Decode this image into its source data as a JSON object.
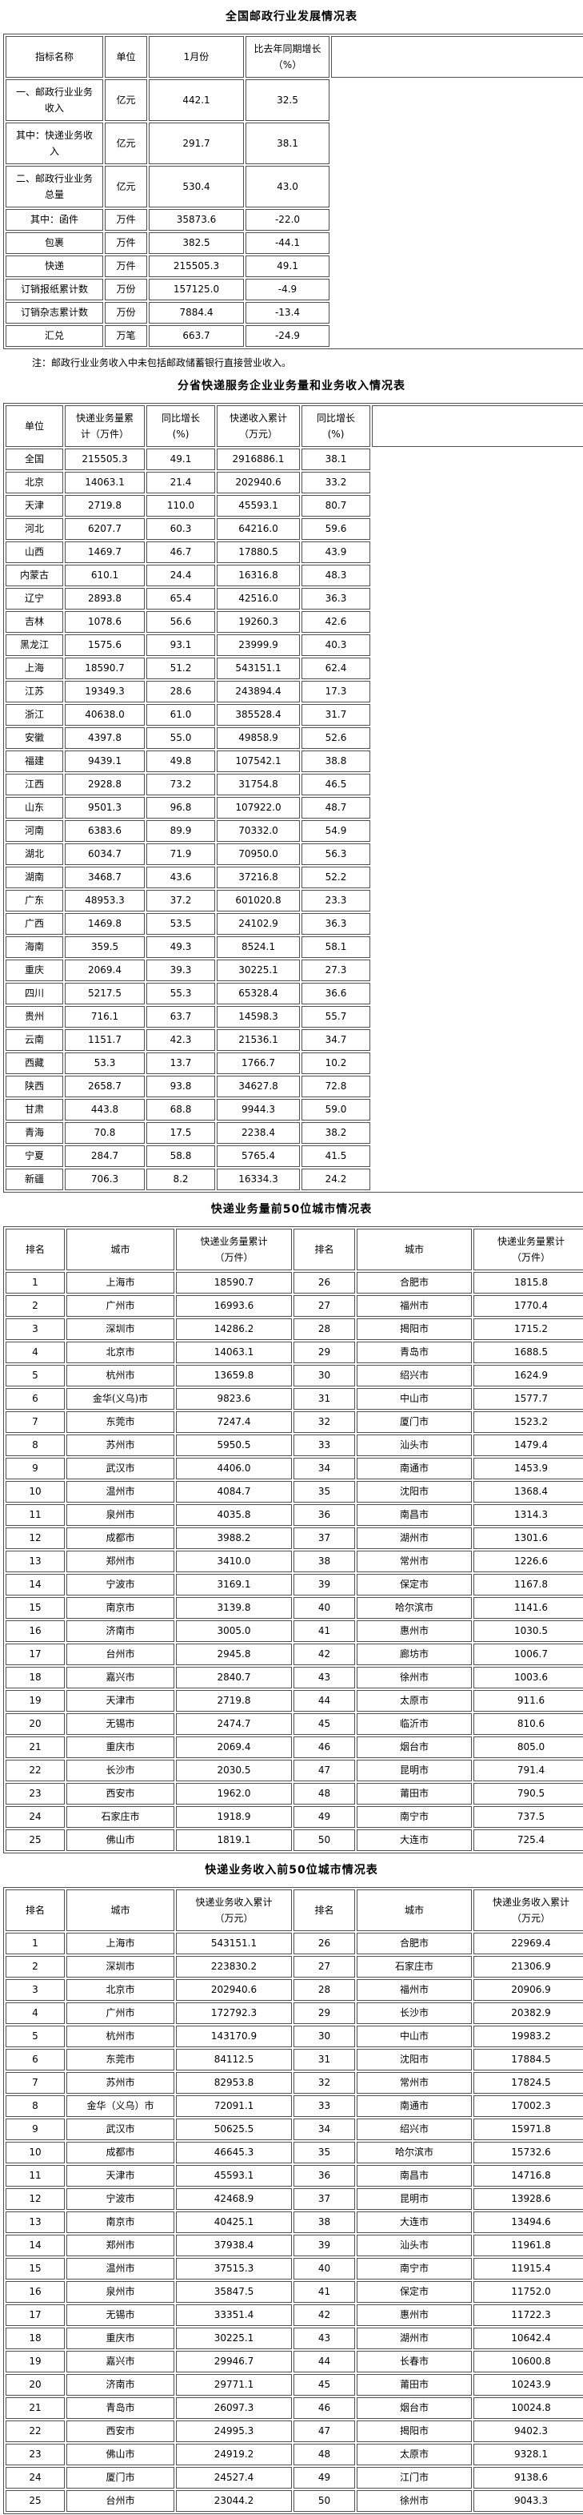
{
  "national_table": {
    "title": "全国邮政行业发展情况表",
    "headers": [
      "指标名称",
      "单位",
      "1月份",
      "比去年同期增长（%）"
    ],
    "rows": [
      [
        "一、邮政行业业务\n收入",
        "亿元",
        "442.1",
        "32.5"
      ],
      [
        "其中：快递业务收\n入",
        "亿元",
        "291.7",
        "38.1"
      ],
      [
        "二、邮政行业业务\n总量",
        "亿元",
        "530.4",
        "43.0"
      ],
      [
        "其中：函件",
        "万件",
        "35873.6",
        "-22.0"
      ],
      [
        "包裹",
        "万件",
        "382.5",
        "-44.1"
      ],
      [
        "快递",
        "万件",
        "215505.3",
        "49.1"
      ],
      [
        "订销报纸累计数",
        "万份",
        "157125.0",
        "-4.9"
      ],
      [
        "订销杂志累计数",
        "万份",
        "7884.4",
        "-13.4"
      ],
      [
        "汇兑",
        "万笔",
        "663.7",
        "-24.9"
      ]
    ],
    "note": "注：邮政行业业务收入中未包括邮政储蓄银行直接营业收入。"
  },
  "province_table": {
    "title": "分省快递服务企业业务量和业务收入情况表",
    "headers": [
      "单位",
      "快递业务量累\n计（万件）",
      "同比增长\n(%)",
      "快递收入累计\n（万元）",
      "同比增长\n(%)"
    ],
    "rows": [
      [
        "全国",
        "215505.3",
        "49.1",
        "2916886.1",
        "38.1"
      ],
      [
        "北京",
        "14063.1",
        "21.4",
        "202940.6",
        "33.2"
      ],
      [
        "天津",
        "2719.8",
        "110.0",
        "45593.1",
        "80.7"
      ],
      [
        "河北",
        "6207.7",
        "60.3",
        "64216.0",
        "59.6"
      ],
      [
        "山西",
        "1469.7",
        "46.7",
        "17880.5",
        "43.9"
      ],
      [
        "内蒙古",
        "610.1",
        "24.4",
        "16316.8",
        "48.3"
      ],
      [
        "辽宁",
        "2893.8",
        "65.4",
        "42516.0",
        "36.3"
      ],
      [
        "吉林",
        "1078.6",
        "56.6",
        "19260.3",
        "42.6"
      ],
      [
        "黑龙江",
        "1575.6",
        "93.1",
        "23999.9",
        "40.3"
      ],
      [
        "上海",
        "18590.7",
        "51.2",
        "543151.1",
        "62.4"
      ],
      [
        "江苏",
        "19349.3",
        "28.6",
        "243894.4",
        "17.3"
      ],
      [
        "浙江",
        "40638.0",
        "61.0",
        "385528.4",
        "31.7"
      ],
      [
        "安徽",
        "4397.8",
        "55.0",
        "49858.9",
        "52.6"
      ],
      [
        "福建",
        "9439.1",
        "49.8",
        "107542.1",
        "38.8"
      ],
      [
        "江西",
        "2928.8",
        "73.2",
        "31754.8",
        "46.5"
      ],
      [
        "山东",
        "9501.3",
        "96.8",
        "107922.0",
        "48.7"
      ],
      [
        "河南",
        "6383.6",
        "89.9",
        "70332.0",
        "54.9"
      ],
      [
        "湖北",
        "6034.7",
        "71.9",
        "70950.0",
        "56.3"
      ],
      [
        "湖南",
        "3468.7",
        "43.6",
        "37216.8",
        "52.2"
      ],
      [
        "广东",
        "48953.3",
        "37.2",
        "601020.8",
        "23.3"
      ],
      [
        "广西",
        "1469.8",
        "53.5",
        "24102.9",
        "36.3"
      ],
      [
        "海南",
        "359.5",
        "49.3",
        "8524.1",
        "58.1"
      ],
      [
        "重庆",
        "2069.4",
        "39.3",
        "30225.1",
        "27.3"
      ],
      [
        "四川",
        "5217.5",
        "55.3",
        "65328.4",
        "36.6"
      ],
      [
        "贵州",
        "716.1",
        "63.7",
        "14598.3",
        "55.7"
      ],
      [
        "云南",
        "1151.7",
        "42.3",
        "21536.1",
        "34.7"
      ],
      [
        "西藏",
        "53.3",
        "13.7",
        "1766.7",
        "10.2"
      ],
      [
        "陕西",
        "2658.7",
        "93.8",
        "34627.8",
        "72.8"
      ],
      [
        "甘肃",
        "443.8",
        "68.8",
        "9944.3",
        "59.0"
      ],
      [
        "青海",
        "70.8",
        "17.5",
        "2238.4",
        "38.2"
      ],
      [
        "宁夏",
        "284.7",
        "58.8",
        "5765.4",
        "41.5"
      ],
      [
        "新疆",
        "706.3",
        "8.2",
        "16334.3",
        "24.2"
      ]
    ]
  },
  "volume_city_table": {
    "title": "快递业务量前50位城市情况表",
    "headers": [
      "排名",
      "城市",
      "快递业务量累计\n（万件）",
      "排名",
      "城市",
      "快递业务量累计\n（万件）"
    ],
    "rows": [
      [
        "1",
        "上海市",
        "18590.7",
        "26",
        "合肥市",
        "1815.8"
      ],
      [
        "2",
        "广州市",
        "16993.6",
        "27",
        "福州市",
        "1770.4"
      ],
      [
        "3",
        "深圳市",
        "14286.2",
        "28",
        "揭阳市",
        "1715.2"
      ],
      [
        "4",
        "北京市",
        "14063.1",
        "29",
        "青岛市",
        "1688.5"
      ],
      [
        "5",
        "杭州市",
        "13659.8",
        "30",
        "绍兴市",
        "1624.9"
      ],
      [
        "6",
        "金华(义乌)市",
        "9823.6",
        "31",
        "中山市",
        "1577.7"
      ],
      [
        "7",
        "东莞市",
        "7247.4",
        "32",
        "厦门市",
        "1523.2"
      ],
      [
        "8",
        "苏州市",
        "5950.5",
        "33",
        "汕头市",
        "1479.4"
      ],
      [
        "9",
        "武汉市",
        "4406.0",
        "34",
        "南通市",
        "1453.9"
      ],
      [
        "10",
        "温州市",
        "4084.7",
        "35",
        "沈阳市",
        "1368.4"
      ],
      [
        "11",
        "泉州市",
        "4035.8",
        "36",
        "南昌市",
        "1314.3"
      ],
      [
        "12",
        "成都市",
        "3988.2",
        "37",
        "湖州市",
        "1301.6"
      ],
      [
        "13",
        "郑州市",
        "3410.0",
        "38",
        "常州市",
        "1226.6"
      ],
      [
        "14",
        "宁波市",
        "3169.1",
        "39",
        "保定市",
        "1167.8"
      ],
      [
        "15",
        "南京市",
        "3139.8",
        "40",
        "哈尔滨市",
        "1141.6"
      ],
      [
        "16",
        "济南市",
        "3005.0",
        "41",
        "惠州市",
        "1030.5"
      ],
      [
        "17",
        "台州市",
        "2945.8",
        "42",
        "廊坊市",
        "1006.7"
      ],
      [
        "18",
        "嘉兴市",
        "2840.7",
        "43",
        "徐州市",
        "1003.6"
      ],
      [
        "19",
        "天津市",
        "2719.8",
        "44",
        "太原市",
        "911.6"
      ],
      [
        "20",
        "无锡市",
        "2474.7",
        "45",
        "临沂市",
        "810.6"
      ],
      [
        "21",
        "重庆市",
        "2069.4",
        "46",
        "烟台市",
        "805.0"
      ],
      [
        "22",
        "长沙市",
        "2030.5",
        "47",
        "昆明市",
        "791.4"
      ],
      [
        "23",
        "西安市",
        "1962.0",
        "48",
        "莆田市",
        "790.5"
      ],
      [
        "24",
        "石家庄市",
        "1918.9",
        "49",
        "南宁市",
        "737.5"
      ],
      [
        "25",
        "佛山市",
        "1819.1",
        "50",
        "大连市",
        "725.4"
      ]
    ]
  },
  "revenue_city_table": {
    "title": "快递业务收入前50位城市情况表",
    "headers": [
      "排名",
      "城市",
      "快递业务收入累计\n（万元）",
      "排名",
      "城市",
      "快递业务收入累计\n（万元）"
    ],
    "rows": [
      [
        "1",
        "上海市",
        "543151.1",
        "26",
        "合肥市",
        "22969.4"
      ],
      [
        "2",
        "深圳市",
        "223830.2",
        "27",
        "石家庄市",
        "21306.9"
      ],
      [
        "3",
        "北京市",
        "202940.6",
        "28",
        "福州市",
        "20906.9"
      ],
      [
        "4",
        "广州市",
        "172792.3",
        "29",
        "长沙市",
        "20382.9"
      ],
      [
        "5",
        "杭州市",
        "143170.9",
        "30",
        "中山市",
        "19983.2"
      ],
      [
        "6",
        "东莞市",
        "84112.5",
        "31",
        "沈阳市",
        "17884.5"
      ],
      [
        "7",
        "苏州市",
        "82953.8",
        "32",
        "常州市",
        "17824.5"
      ],
      [
        "8",
        "金华（义乌）市",
        "72091.1",
        "33",
        "南通市",
        "17002.3"
      ],
      [
        "9",
        "武汉市",
        "50625.5",
        "34",
        "绍兴市",
        "15971.8"
      ],
      [
        "10",
        "成都市",
        "46645.3",
        "35",
        "哈尔滨市",
        "15732.6"
      ],
      [
        "11",
        "天津市",
        "45593.1",
        "36",
        "南昌市",
        "14716.8"
      ],
      [
        "12",
        "宁波市",
        "42468.9",
        "37",
        "昆明市",
        "13928.6"
      ],
      [
        "13",
        "南京市",
        "40425.1",
        "38",
        "大连市",
        "13494.6"
      ],
      [
        "14",
        "郑州市",
        "37938.4",
        "39",
        "汕头市",
        "11961.8"
      ],
      [
        "15",
        "温州市",
        "37515.3",
        "40",
        "南宁市",
        "11915.4"
      ],
      [
        "16",
        "泉州市",
        "35847.5",
        "41",
        "保定市",
        "11752.0"
      ],
      [
        "17",
        "无锡市",
        "33351.4",
        "42",
        "惠州市",
        "11722.3"
      ],
      [
        "18",
        "重庆市",
        "30225.1",
        "43",
        "湖州市",
        "10642.4"
      ],
      [
        "19",
        "嘉兴市",
        "29946.7",
        "44",
        "长春市",
        "10600.8"
      ],
      [
        "20",
        "济南市",
        "29771.1",
        "45",
        "莆田市",
        "10243.9"
      ],
      [
        "21",
        "青岛市",
        "26097.3",
        "46",
        "烟台市",
        "10024.8"
      ],
      [
        "22",
        "西安市",
        "24995.3",
        "47",
        "揭阳市",
        "9402.3"
      ],
      [
        "23",
        "佛山市",
        "24919.2",
        "48",
        "太原市",
        "9328.1"
      ],
      [
        "24",
        "厦门市",
        "24527.4",
        "49",
        "江门市",
        "9138.6"
      ],
      [
        "25",
        "台州市",
        "23044.2",
        "50",
        "徐州市",
        "9043.3"
      ]
    ]
  }
}
